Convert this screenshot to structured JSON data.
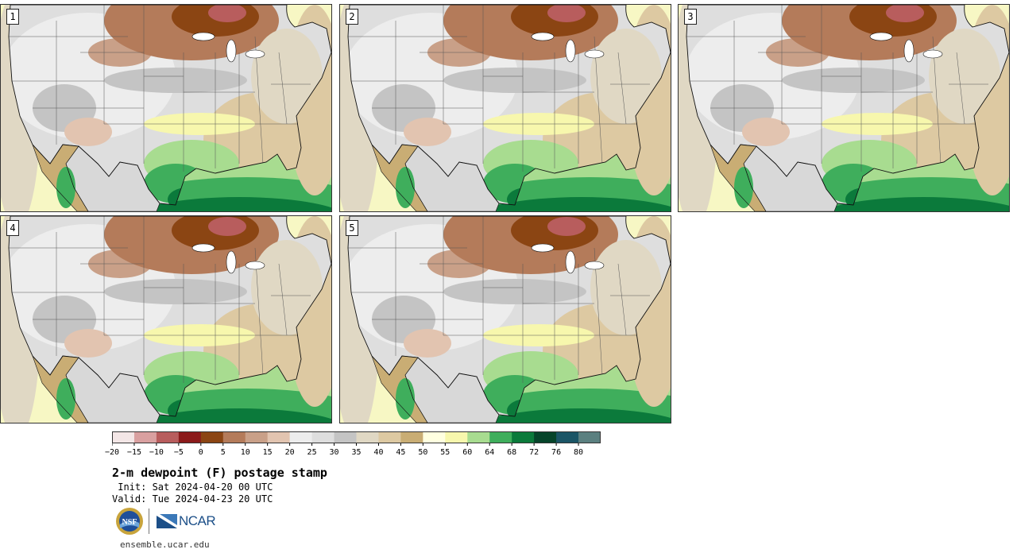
{
  "title": "2-m dewpoint (F) postage stamp",
  "init": " Init: Sat 2024-04-20 00 UTC",
  "valid": "Valid: Tue 2024-04-23 20 UTC",
  "site": "ensemble.ucar.edu",
  "logos": {
    "nsf": "NSF",
    "ncar": "NCAR"
  },
  "panels": [
    "1",
    "2",
    "3",
    "4",
    "5"
  ],
  "colorbar": {
    "ticks": [
      "−20",
      "−15",
      "−10",
      "−5",
      "0",
      "5",
      "10",
      "15",
      "20",
      "25",
      "30",
      "35",
      "40",
      "45",
      "50",
      "55",
      "60",
      "64",
      "68",
      "72",
      "76",
      "80"
    ],
    "colors": [
      "#f3e6e6",
      "#d9a0a0",
      "#b85d5d",
      "#8b1a1a",
      "#8b4513",
      "#b47b5a",
      "#c9a088",
      "#e2c4b0",
      "#ededed",
      "#dedede",
      "#c4c4c4",
      "#e0d8c4",
      "#ddc9a2",
      "#c9ad74",
      "#ffffe0",
      "#f7f7ad",
      "#a8dc90",
      "#3fae5c",
      "#0b7a3b",
      "#06442a",
      "#1b5566",
      "#5b8080"
    ]
  }
}
